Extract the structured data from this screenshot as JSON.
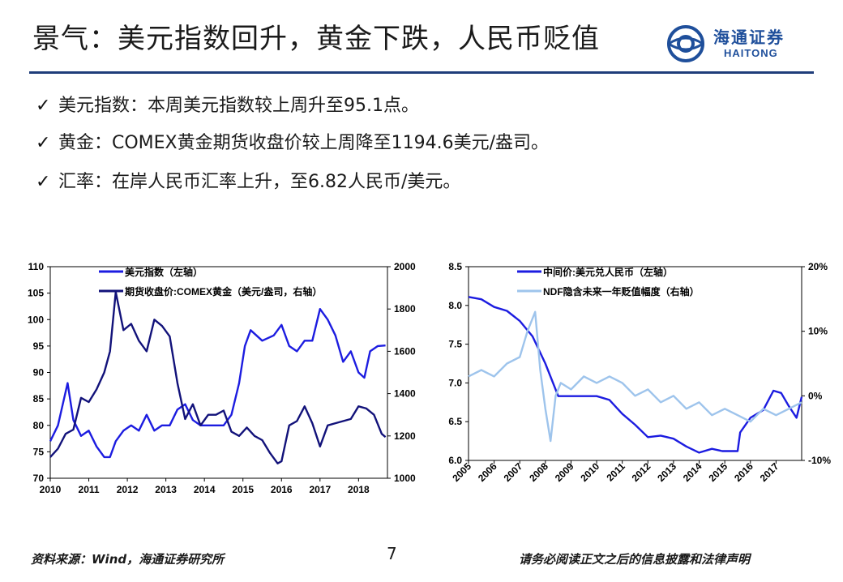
{
  "header": {
    "title": "景气：美元指数回升，黄金下跌，人民币贬值",
    "logo_cn": "海通证券",
    "logo_en": "HAITONG"
  },
  "bullets": [
    {
      "check": "✓",
      "text": "美元指数：本周美元指数较上周升至95.1点。"
    },
    {
      "check": "✓",
      "text": "黄金：COMEX黄金期货收盘价较上周降至1194.6美元/盎司。"
    },
    {
      "check": "✓",
      "text": "汇率：在岸人民币汇率上升，至6.82人民币/美元。"
    }
  ],
  "footer": {
    "source": "资料来源：Wind，海通证券研究所",
    "page": "7",
    "disclaimer": "请务必阅读正文之后的信息披露和法律声明"
  },
  "colors": {
    "accent": "#1f3d7a",
    "series_blue": "#1c1ce0",
    "series_navy": "#12127a",
    "series_light": "#9ec4ec"
  },
  "chart_data": [
    {
      "type": "line",
      "title": "",
      "x_ticks": [
        "2010",
        "2011",
        "2012",
        "2013",
        "2014",
        "2015",
        "2016",
        "2017",
        "2018"
      ],
      "xlim": [
        2010,
        2018.75
      ],
      "ylim_left": [
        70,
        110
      ],
      "yticks_left": [
        "110",
        "105",
        "100",
        "95",
        "90",
        "85",
        "80",
        "75",
        "70"
      ],
      "ylim_right": [
        1000,
        2000
      ],
      "yticks_right": [
        "2000",
        "1800",
        "1600",
        "1400",
        "1200",
        "1000"
      ],
      "legend_position": "top-left",
      "series": [
        {
          "name": "美元指数（左轴）",
          "axis": "left",
          "x": [
            2010.0,
            2010.2,
            2010.45,
            2010.6,
            2010.8,
            2011.0,
            2011.2,
            2011.4,
            2011.55,
            2011.7,
            2011.9,
            2012.1,
            2012.3,
            2012.5,
            2012.7,
            2012.9,
            2013.1,
            2013.3,
            2013.5,
            2013.7,
            2013.9,
            2014.1,
            2014.3,
            2014.5,
            2014.7,
            2014.9,
            2015.05,
            2015.2,
            2015.5,
            2015.8,
            2016.0,
            2016.2,
            2016.4,
            2016.6,
            2016.8,
            2017.0,
            2017.2,
            2017.4,
            2017.6,
            2017.8,
            2018.0,
            2018.15,
            2018.3,
            2018.5,
            2018.7
          ],
          "values": [
            77,
            80,
            88,
            81,
            78,
            79,
            76,
            74,
            74,
            77,
            79,
            80,
            79,
            82,
            79,
            80,
            80,
            83,
            84,
            81,
            80,
            80,
            80,
            80,
            82,
            88,
            95,
            98,
            96,
            97,
            99,
            95,
            94,
            96,
            96,
            102,
            100,
            97,
            92,
            94,
            90,
            89,
            94,
            95,
            95.1
          ]
        },
        {
          "name": "期货收盘价:COMEX黄金（美元/盎司，右轴）",
          "axis": "right",
          "x": [
            2010.0,
            2010.2,
            2010.4,
            2010.6,
            2010.8,
            2011.0,
            2011.2,
            2011.4,
            2011.55,
            2011.7,
            2011.9,
            2012.1,
            2012.3,
            2012.5,
            2012.7,
            2012.9,
            2013.1,
            2013.3,
            2013.5,
            2013.7,
            2013.9,
            2014.1,
            2014.3,
            2014.5,
            2014.7,
            2014.9,
            2015.1,
            2015.3,
            2015.5,
            2015.7,
            2015.9,
            2016.0,
            2016.2,
            2016.4,
            2016.6,
            2016.8,
            2017.0,
            2017.2,
            2017.4,
            2017.6,
            2017.8,
            2018.0,
            2018.2,
            2018.4,
            2018.6,
            2018.7
          ],
          "values": [
            1100,
            1140,
            1210,
            1230,
            1380,
            1360,
            1420,
            1500,
            1600,
            1880,
            1700,
            1730,
            1650,
            1600,
            1750,
            1720,
            1670,
            1450,
            1280,
            1350,
            1250,
            1300,
            1300,
            1320,
            1220,
            1200,
            1240,
            1200,
            1180,
            1120,
            1070,
            1080,
            1250,
            1270,
            1340,
            1260,
            1150,
            1250,
            1260,
            1270,
            1280,
            1340,
            1330,
            1300,
            1210,
            1194.6
          ]
        }
      ]
    },
    {
      "type": "line",
      "title": "",
      "x_ticks": [
        "2005",
        "2006",
        "2007",
        "2008",
        "2009",
        "2010",
        "2011",
        "2012",
        "2013",
        "2014",
        "2015",
        "2016",
        "2017"
      ],
      "xlim": [
        2005,
        2018.0
      ],
      "ylim_left": [
        6.0,
        8.5
      ],
      "yticks_left": [
        "8.5",
        "8.0",
        "7.5",
        "7.0",
        "6.5",
        "6.0"
      ],
      "ylim_right": [
        -10,
        20
      ],
      "yticks_right": [
        "20%",
        "10%",
        "0%",
        "-10%"
      ],
      "legend_position": "top-left",
      "series": [
        {
          "name": "中间价:美元兑人民币（左轴）",
          "axis": "left",
          "x": [
            2005.0,
            2005.5,
            2006.0,
            2006.5,
            2007.0,
            2007.5,
            2008.0,
            2008.5,
            2009.0,
            2009.5,
            2010.0,
            2010.5,
            2011.0,
            2011.5,
            2012.0,
            2012.5,
            2013.0,
            2013.5,
            2014.0,
            2014.5,
            2014.9,
            2015.2,
            2015.5,
            2015.6,
            2016.0,
            2016.5,
            2016.9,
            2017.2,
            2017.5,
            2017.8,
            2018.0
          ],
          "values": [
            8.11,
            8.08,
            7.98,
            7.93,
            7.8,
            7.6,
            7.25,
            6.83,
            6.83,
            6.83,
            6.83,
            6.78,
            6.6,
            6.46,
            6.3,
            6.32,
            6.28,
            6.18,
            6.1,
            6.15,
            6.12,
            6.12,
            6.12,
            6.36,
            6.55,
            6.65,
            6.9,
            6.87,
            6.7,
            6.55,
            6.82
          ]
        },
        {
          "name": "NDF隐含未来一年贬值幅度（右轴）",
          "axis": "right",
          "x": [
            2005.0,
            2005.5,
            2006.0,
            2006.5,
            2007.0,
            2007.3,
            2007.6,
            2007.8,
            2008.0,
            2008.2,
            2008.4,
            2008.6,
            2009.0,
            2009.5,
            2010.0,
            2010.5,
            2011.0,
            2011.5,
            2012.0,
            2012.5,
            2013.0,
            2013.5,
            2014.0,
            2014.5,
            2015.0,
            2015.5,
            2016.0,
            2016.5,
            2017.0,
            2017.5,
            2018.0
          ],
          "values": [
            3,
            4,
            3,
            5,
            6,
            10,
            13,
            4,
            -2,
            -7,
            0,
            2,
            1,
            3,
            2,
            3,
            2,
            0,
            1,
            -1,
            0,
            -2,
            -1,
            -3,
            -2,
            -3,
            -4,
            -2,
            -3,
            -2,
            -1
          ]
        }
      ]
    }
  ]
}
